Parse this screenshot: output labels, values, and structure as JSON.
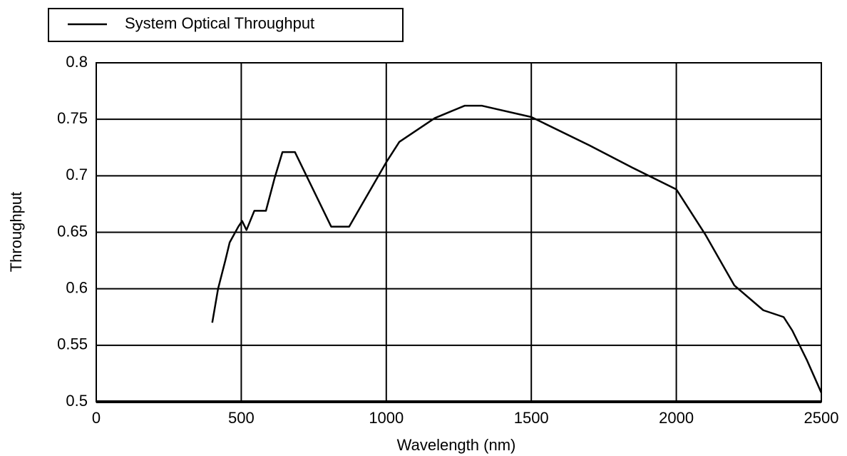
{
  "chart_data": {
    "type": "line",
    "xlabel": "Wavelength (nm)",
    "ylabel": "Throughput",
    "series": [
      {
        "name": "System Optical Throughput",
        "color": "#000000",
        "x": [
          400,
          420,
          445,
          460,
          490,
          503,
          518,
          545,
          585,
          615,
          642,
          685,
          810,
          872,
          1000,
          1045,
          1167,
          1270,
          1330,
          1500,
          1700,
          1850,
          2000,
          2100,
          2200,
          2300,
          2370,
          2400,
          2450,
          2500
        ],
        "values": [
          0.57,
          0.6,
          0.625,
          0.641,
          0.655,
          0.66,
          0.652,
          0.669,
          0.669,
          0.698,
          0.721,
          0.721,
          0.655,
          0.655,
          0.712,
          0.73,
          0.751,
          0.762,
          0.762,
          0.752,
          0.727,
          0.707,
          0.688,
          0.648,
          0.603,
          0.581,
          0.575,
          0.563,
          0.537,
          0.508
        ]
      }
    ],
    "xlim": [
      0,
      2500
    ],
    "xticks": [
      0,
      500,
      1000,
      1500,
      2000,
      2500
    ],
    "ylim": [
      0.5,
      0.8
    ],
    "yticks": [
      0.5,
      0.55,
      0.6,
      0.65,
      0.7,
      0.75,
      0.8
    ],
    "grid": true,
    "legend": "top-left"
  }
}
